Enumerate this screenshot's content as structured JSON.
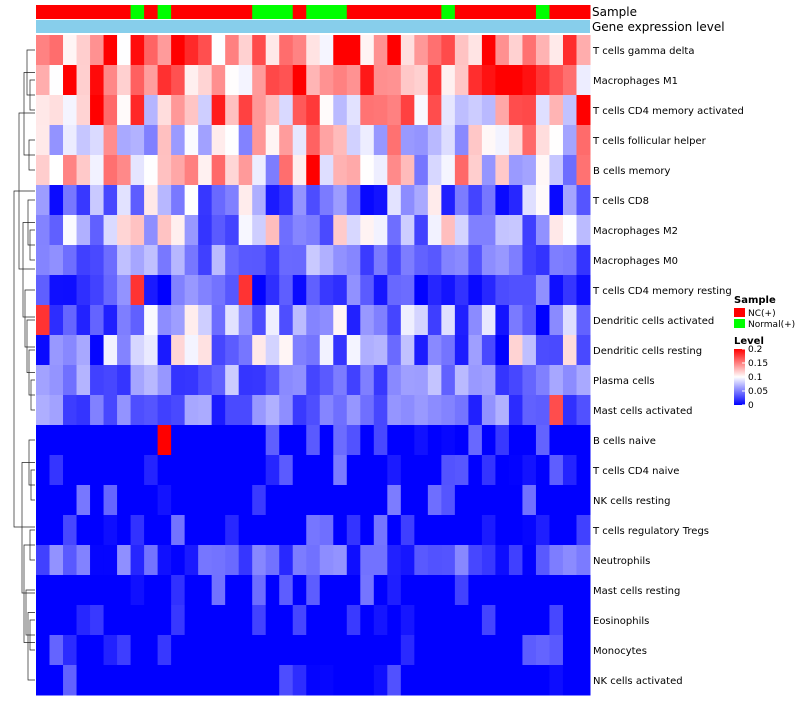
{
  "chart_data": {
    "type": "heatmap",
    "title": "",
    "annotation_tracks": [
      "Sample",
      "Gene expression level"
    ],
    "columns": 41,
    "sample_groups": [
      0,
      0,
      0,
      0,
      0,
      0,
      0,
      1,
      0,
      1,
      0,
      0,
      0,
      0,
      0,
      0,
      1,
      1,
      1,
      0,
      1,
      1,
      1,
      0,
      0,
      0,
      0,
      0,
      0,
      0,
      1,
      0,
      0,
      0,
      0,
      0,
      0,
      1,
      0,
      0,
      0
    ],
    "rows": [
      "T cells gamma delta",
      "Macrophages M1",
      "T cells CD4 memory activated",
      "T cells follicular helper",
      "B cells memory",
      "T cells CD8",
      "Macrophages M2",
      "Macrophages M0",
      "T cells CD4 memory resting",
      "Dendritic cells activated",
      "Dendritic cells resting",
      "Plasma cells",
      "Mast cells activated",
      "B cells naive",
      "T cells CD4 naive",
      "NK cells resting",
      "T cells regulatory  Tregs",
      "Neutrophils",
      "Mast cells resting",
      "Eosinophils",
      "Monocytes",
      "NK cells activated"
    ],
    "row_base_levels": [
      0.15,
      0.15,
      0.13,
      0.11,
      0.1,
      0.06,
      0.07,
      0.05,
      0.03,
      0.06,
      0.06,
      0.05,
      0.04,
      0.02,
      0.02,
      0.02,
      0.02,
      0.03,
      0.02,
      0.01,
      0.01,
      0.01
    ],
    "cells_spiked": [
      {
        "row": 0,
        "col": 5,
        "value": 0.2
      },
      {
        "row": 0,
        "col": 10,
        "value": 0.2
      },
      {
        "row": 1,
        "col": 2,
        "value": 0.2
      },
      {
        "row": 1,
        "col": 35,
        "value": 0.2
      },
      {
        "row": 2,
        "col": 4,
        "value": 0.2
      },
      {
        "row": 2,
        "col": 40,
        "value": 0.2
      },
      {
        "row": 4,
        "col": 20,
        "value": 0.2
      },
      {
        "row": 8,
        "col": 7,
        "value": 0.18
      },
      {
        "row": 8,
        "col": 15,
        "value": 0.18
      },
      {
        "row": 9,
        "col": 0,
        "value": 0.18
      },
      {
        "row": 12,
        "col": 38,
        "value": 0.17
      },
      {
        "row": 13,
        "col": 9,
        "value": 0.2
      }
    ],
    "legend": {
      "sample": {
        "title": "Sample",
        "entries": [
          {
            "label": "NC(+)",
            "color": "#ff0000"
          },
          {
            "label": "Normal(+)",
            "color": "#00ff00"
          }
        ]
      },
      "level": {
        "title": "Level",
        "ticks": [
          "0.2",
          "0.15",
          "0.1",
          "0.05",
          "0"
        ],
        "tick_values": [
          0.2,
          0.15,
          0.1,
          0.05,
          0
        ],
        "range": [
          0,
          0.2
        ]
      }
    },
    "color_scale": {
      "low": "#0000ff",
      "mid": "#ffffff",
      "high": "#ff0000"
    },
    "gene_expression_color": "#87ceeb"
  }
}
